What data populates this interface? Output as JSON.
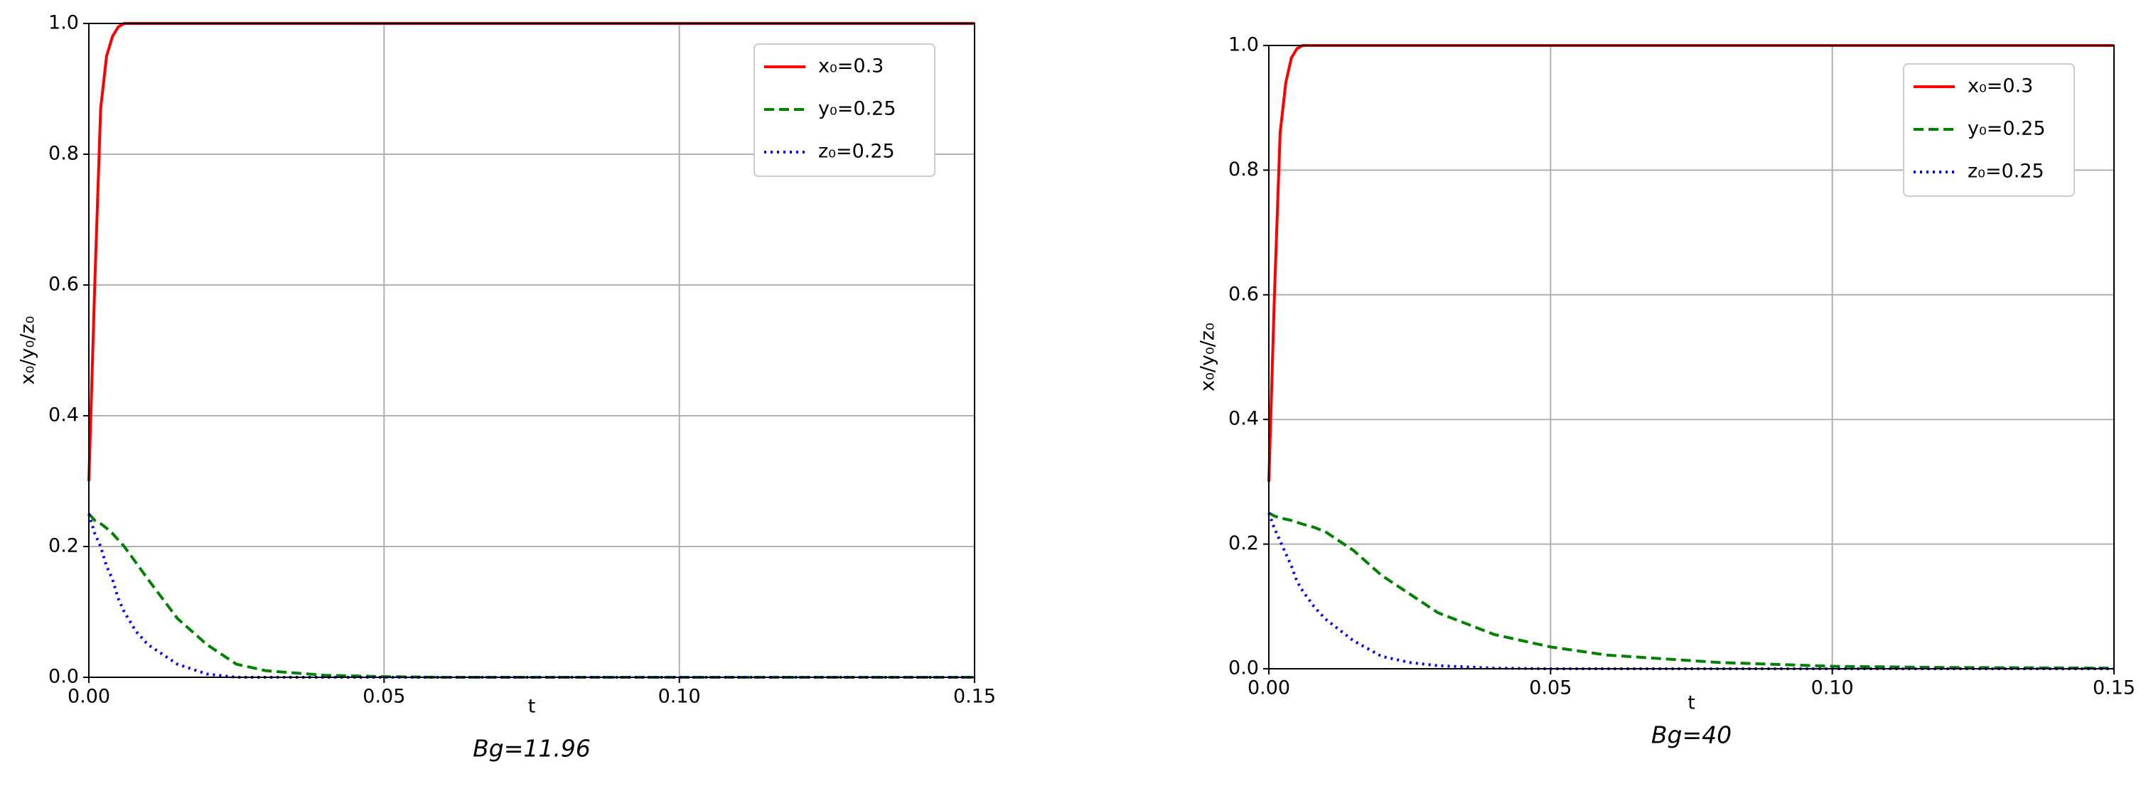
{
  "chart_data": [
    {
      "type": "line",
      "xlabel": "t",
      "ylabel": "x₀/y₀/z₀",
      "caption": "Bg=11.96",
      "x": [
        0,
        0.001,
        0.002,
        0.003,
        0.004,
        0.005,
        0.006,
        0.008,
        0.01,
        0.015,
        0.02,
        0.025,
        0.03,
        0.04,
        0.05,
        0.06,
        0.08,
        0.1,
        0.12,
        0.15
      ],
      "series": [
        {
          "name": "x₀=0.3",
          "color": "#ff0000",
          "linestyle": "solid",
          "values": [
            0.3,
            0.6,
            0.87,
            0.95,
            0.98,
            0.995,
            1,
            1,
            1,
            1,
            1,
            1,
            1,
            1,
            1,
            1,
            1,
            1,
            1,
            1
          ]
        },
        {
          "name": "y₀=0.25",
          "color": "#008000",
          "linestyle": "dashed",
          "values": [
            0.25,
            0.24,
            0.235,
            0.228,
            0.22,
            0.21,
            0.2,
            0.175,
            0.15,
            0.09,
            0.05,
            0.02,
            0.01,
            0.003,
            0.001,
            0,
            0,
            0,
            0,
            0
          ]
        },
        {
          "name": "z₀=0.25",
          "color": "#0000ff",
          "linestyle": "dotted",
          "values": [
            0.25,
            0.22,
            0.2,
            0.17,
            0.15,
            0.12,
            0.1,
            0.07,
            0.05,
            0.02,
            0.005,
            0,
            0,
            0,
            0,
            0,
            0,
            0,
            0,
            0
          ]
        }
      ],
      "xlim": [
        0,
        0.15
      ],
      "ylim": [
        0,
        1.0
      ],
      "xticks": [
        {
          "value": 0,
          "label": "0.00"
        },
        {
          "value": 0.05,
          "label": "0.05"
        },
        {
          "value": 0.1,
          "label": "0.10"
        },
        {
          "value": 0.15,
          "label": "0.15"
        }
      ],
      "yticks": [
        {
          "value": 0,
          "label": "0.0"
        },
        0.2,
        0.4,
        0.6,
        0.8,
        {
          "value": 1.0,
          "label": "1.0"
        }
      ],
      "grid": true,
      "legend": "upper right"
    },
    {
      "type": "line",
      "xlabel": "t",
      "ylabel": "x₀/y₀/z₀",
      "caption": "Bg=40",
      "x": [
        0,
        0.001,
        0.002,
        0.003,
        0.004,
        0.005,
        0.006,
        0.008,
        0.01,
        0.015,
        0.02,
        0.025,
        0.03,
        0.04,
        0.05,
        0.06,
        0.08,
        0.1,
        0.12,
        0.15
      ],
      "series": [
        {
          "name": "x₀=0.3",
          "color": "#ff0000",
          "linestyle": "solid",
          "values": [
            0.3,
            0.6,
            0.86,
            0.94,
            0.98,
            0.995,
            1,
            1,
            1,
            1,
            1,
            1,
            1,
            1,
            1,
            1,
            1,
            1,
            1,
            1
          ]
        },
        {
          "name": "y₀=0.25",
          "color": "#008000",
          "linestyle": "dashed",
          "values": [
            0.25,
            0.245,
            0.242,
            0.24,
            0.238,
            0.235,
            0.232,
            0.227,
            0.22,
            0.19,
            0.15,
            0.12,
            0.09,
            0.055,
            0.035,
            0.022,
            0.01,
            0.004,
            0.002,
            0.001
          ]
        },
        {
          "name": "z₀=0.25",
          "color": "#0000ff",
          "linestyle": "dotted",
          "values": [
            0.25,
            0.225,
            0.205,
            0.185,
            0.165,
            0.14,
            0.125,
            0.1,
            0.08,
            0.045,
            0.02,
            0.01,
            0.005,
            0.001,
            0,
            0,
            0,
            0,
            0,
            0
          ]
        }
      ],
      "xlim": [
        0,
        0.15
      ],
      "ylim": [
        0,
        1.0
      ],
      "xticks": [
        {
          "value": 0,
          "label": "0.00"
        },
        {
          "value": 0.05,
          "label": "0.05"
        },
        {
          "value": 0.1,
          "label": "0.10"
        },
        {
          "value": 0.15,
          "label": "0.15"
        }
      ],
      "yticks": [
        {
          "value": 0,
          "label": "0.0"
        },
        0.2,
        0.4,
        0.6,
        0.8,
        {
          "value": 1.0,
          "label": "1.0"
        }
      ],
      "grid": true,
      "legend": "upper right"
    }
  ]
}
